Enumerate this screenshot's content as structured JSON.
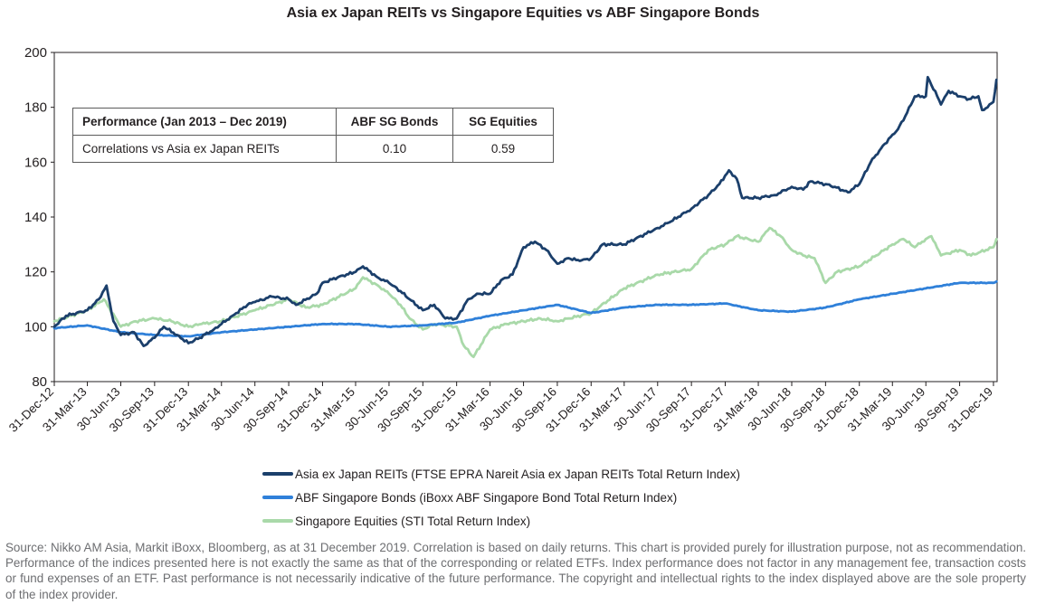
{
  "chart_data": {
    "type": "line",
    "title": "Asia ex Japan REITs vs Singapore Equities vs ABF Singapore Bonds",
    "xlabel": "",
    "ylabel": "",
    "ylim": [
      80,
      200
    ],
    "yticks": [
      80,
      100,
      120,
      140,
      160,
      180,
      200
    ],
    "xlim": [
      "2012-12-31",
      "2020-01-10"
    ],
    "xtick_labels": [
      "31-Dec-12",
      "31-Mar-13",
      "30-Jun-13",
      "30-Sep-13",
      "31-Dec-13",
      "31-Mar-14",
      "30-Jun-14",
      "30-Sep-14",
      "31-Dec-14",
      "31-Mar-15",
      "30-Jun-15",
      "30-Sep-15",
      "31-Dec-15",
      "31-Mar-16",
      "30-Jun-16",
      "30-Sep-16",
      "31-Dec-16",
      "31-Mar-17",
      "30-Jun-17",
      "30-Sep-17",
      "31-Dec-17",
      "31-Mar-18",
      "30-Jun-18",
      "30-Sep-18",
      "31-Dec-18",
      "31-Mar-19",
      "30-Jun-19",
      "30-Sep-19",
      "31-Dec-19"
    ],
    "xtick_dates": [
      "2012-12-31",
      "2013-03-31",
      "2013-06-30",
      "2013-09-30",
      "2013-12-31",
      "2014-03-31",
      "2014-06-30",
      "2014-09-30",
      "2014-12-31",
      "2015-03-31",
      "2015-06-30",
      "2015-09-30",
      "2015-12-31",
      "2016-03-31",
      "2016-06-30",
      "2016-09-30",
      "2016-12-31",
      "2017-03-31",
      "2017-06-30",
      "2017-09-30",
      "2017-12-31",
      "2018-03-31",
      "2018-06-30",
      "2018-09-30",
      "2018-12-31",
      "2019-03-31",
      "2019-06-30",
      "2019-09-30",
      "2019-12-31"
    ],
    "grid": false,
    "legend_position": "bottom",
    "series": [
      {
        "name": "Asia ex Japan REITs (FTSE EPRA Nareit Asia ex Japan REITs Total Return Index)",
        "color": "#1b3f6b",
        "x": [
          "2012-12-31",
          "2013-02-01",
          "2013-03-31",
          "2013-05-01",
          "2013-05-22",
          "2013-06-10",
          "2013-06-30",
          "2013-08-05",
          "2013-08-31",
          "2013-09-30",
          "2013-10-25",
          "2013-11-30",
          "2013-12-31",
          "2014-01-31",
          "2014-03-10",
          "2014-03-31",
          "2014-04-30",
          "2014-06-10",
          "2014-06-30",
          "2014-08-15",
          "2014-09-30",
          "2014-10-20",
          "2014-12-15",
          "2014-12-31",
          "2015-02-10",
          "2015-03-31",
          "2015-04-20",
          "2015-05-30",
          "2015-06-30",
          "2015-07-31",
          "2015-08-25",
          "2015-09-30",
          "2015-10-31",
          "2015-11-30",
          "2015-12-31",
          "2016-01-31",
          "2016-02-29",
          "2016-03-31",
          "2016-04-30",
          "2016-05-31",
          "2016-06-30",
          "2016-07-31",
          "2016-08-31",
          "2016-09-30",
          "2016-10-31",
          "2016-11-30",
          "2016-12-31",
          "2017-01-31",
          "2017-03-31",
          "2017-04-30",
          "2017-06-30",
          "2017-07-31",
          "2017-09-30",
          "2017-11-15",
          "2017-12-15",
          "2018-01-10",
          "2018-01-31",
          "2018-02-15",
          "2018-03-31",
          "2018-05-15",
          "2018-06-30",
          "2018-07-31",
          "2018-08-20",
          "2018-09-30",
          "2018-10-25",
          "2018-11-30",
          "2018-12-31",
          "2019-01-31",
          "2019-02-28",
          "2019-03-31",
          "2019-04-15",
          "2019-05-10",
          "2019-05-31",
          "2019-06-30",
          "2019-07-05",
          "2019-07-31",
          "2019-08-10",
          "2019-08-31",
          "2019-09-30",
          "2019-10-25",
          "2019-11-20",
          "2019-11-30",
          "2019-12-15",
          "2019-12-31",
          "2020-01-08"
        ],
        "values": [
          100,
          104,
          106,
          110,
          115,
          102,
          97,
          98,
          93,
          96,
          100,
          97,
          94,
          96,
          99,
          101,
          104,
          108,
          109,
          111,
          110,
          108,
          112,
          116,
          118,
          120,
          122,
          118,
          116,
          113,
          110,
          106,
          108,
          103,
          103,
          110,
          112,
          112,
          117,
          119,
          129,
          131,
          128,
          123,
          125,
          124,
          125,
          130,
          130,
          132,
          136,
          138,
          143,
          148,
          152,
          157,
          154,
          147,
          147,
          148,
          151,
          150,
          153,
          152,
          151,
          149,
          152,
          160,
          165,
          170,
          172,
          178,
          184,
          184,
          191,
          184,
          181,
          186,
          184,
          183,
          184,
          179,
          180,
          182,
          190
        ]
      },
      {
        "name": "ABF Singapore Bonds (iBoxx ABF Singapore Bond Total Return Index)",
        "color": "#2f80d9",
        "x": [
          "2012-12-31",
          "2013-03-31",
          "2013-06-30",
          "2013-09-30",
          "2013-12-31",
          "2014-03-31",
          "2014-06-30",
          "2014-09-30",
          "2014-12-31",
          "2015-03-31",
          "2015-06-30",
          "2015-09-30",
          "2015-12-31",
          "2016-03-31",
          "2016-06-30",
          "2016-09-30",
          "2016-12-31",
          "2017-03-31",
          "2017-06-30",
          "2017-09-30",
          "2017-12-31",
          "2018-03-31",
          "2018-06-30",
          "2018-09-30",
          "2018-12-31",
          "2019-03-31",
          "2019-06-30",
          "2019-09-30",
          "2019-12-31",
          "2020-01-08"
        ],
        "values": [
          99.5,
          100.5,
          98,
          97,
          96.5,
          98,
          99,
          100,
          101,
          101,
          100,
          100.5,
          101.5,
          104,
          106,
          108,
          105,
          107,
          108,
          108,
          108.5,
          106,
          105.5,
          107,
          110,
          112,
          114,
          116,
          116,
          116.5
        ]
      },
      {
        "name": "Singapore Equities (STI Total Return Index)",
        "color": "#a9d9a9",
        "x": [
          "2012-12-31",
          "2013-03-31",
          "2013-05-15",
          "2013-06-30",
          "2013-08-10",
          "2013-09-30",
          "2013-11-15",
          "2013-12-31",
          "2014-02-05",
          "2014-03-31",
          "2014-06-30",
          "2014-09-30",
          "2014-11-15",
          "2014-12-31",
          "2015-03-31",
          "2015-04-20",
          "2015-05-31",
          "2015-06-30",
          "2015-07-31",
          "2015-08-25",
          "2015-09-30",
          "2015-10-31",
          "2015-12-31",
          "2016-01-20",
          "2016-02-15",
          "2016-03-31",
          "2016-05-15",
          "2016-06-30",
          "2016-08-15",
          "2016-09-30",
          "2016-10-31",
          "2016-12-31",
          "2017-03-31",
          "2017-06-30",
          "2017-09-30",
          "2017-11-15",
          "2017-12-31",
          "2018-01-31",
          "2018-03-31",
          "2018-05-01",
          "2018-05-31",
          "2018-06-30",
          "2018-07-31",
          "2018-08-31",
          "2018-09-30",
          "2018-10-31",
          "2018-12-31",
          "2019-02-15",
          "2019-03-31",
          "2019-04-30",
          "2019-05-31",
          "2019-06-30",
          "2019-07-15",
          "2019-08-10",
          "2019-09-30",
          "2019-10-31",
          "2019-12-31",
          "2020-01-08"
        ],
        "values": [
          102,
          106,
          110,
          100,
          102,
          103,
          102,
          100,
          101,
          102,
          106,
          110,
          107,
          108,
          114,
          118,
          115,
          112,
          108,
          103,
          99,
          101,
          100,
          93,
          89,
          99,
          101,
          102,
          103,
          102,
          103,
          105,
          114,
          119,
          121,
          128,
          130,
          133,
          131,
          136,
          133,
          128,
          126,
          125,
          116,
          120,
          122,
          126,
          130,
          132,
          129,
          132,
          133,
          126,
          128,
          126,
          129,
          132
        ]
      }
    ]
  },
  "table": {
    "headers": [
      "Performance (Jan 2013 – Dec 2019)",
      "ABF SG Bonds",
      "SG Equities"
    ],
    "row": {
      "label": "Correlations vs Asia ex Japan REITs",
      "bonds": "0.10",
      "equities": "0.59"
    }
  },
  "source_note": "Source: Nikko AM Asia, Markit iBoxx, Bloomberg, as at 31 December 2019. Correlation is based on daily returns. This chart is provided purely for illustration purpose, not as recommendation. Performance of the indices presented here is not exactly the same as that of the corresponding or related ETFs. Index performance does not factor in any management fee, transaction costs or fund expenses of an ETF. Past performance is not necessarily indicative of the future performance. The copyright and intellectual rights to the index displayed above are the sole property of the index provider."
}
